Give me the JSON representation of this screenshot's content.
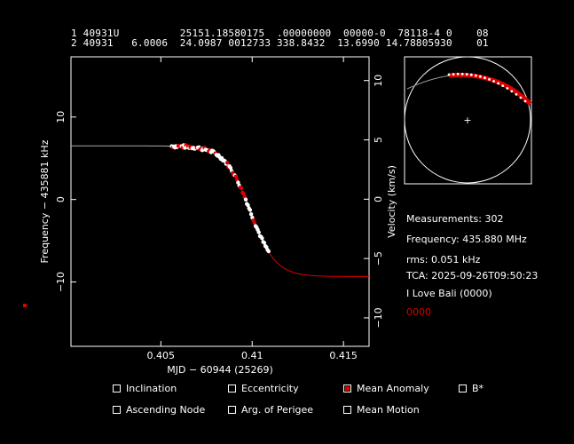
{
  "tle": {
    "line1": "1 40931U          25151.18580175  .00000000  00000-0  78118-4 0    08",
    "line2": "2 40931   6.0006  24.0987 0012733 338.8432  13.6990 14.78805930    01"
  },
  "info": {
    "measurements": "Measurements: 302",
    "frequency": "Frequency: 435.880 MHz",
    "rms": "rms: 0.051 kHz",
    "tca": "TCA: 2025-09-26T09:50:23",
    "site": "I Love Bali (0000)",
    "site_code": "0000"
  },
  "colors": {
    "accent": "#dd0000",
    "curve_fit": "#aaaaaa",
    "points": "#ffffff"
  },
  "checkboxes": [
    {
      "label": "Inclination",
      "checked": false
    },
    {
      "label": "Eccentricity",
      "checked": false
    },
    {
      "label": "Mean Anomaly",
      "checked": true
    },
    {
      "label": "B*",
      "checked": false
    },
    {
      "label": "Ascending Node",
      "checked": false
    },
    {
      "label": "Arg. of Perigee",
      "checked": false
    },
    {
      "label": "Mean Motion",
      "checked": false
    }
  ],
  "chart_data": {
    "type": "scatter",
    "xlabel": "MJD − 60944 (25269)",
    "ylabel": "Frequency − 435881 kHz",
    "y2label": "Velocity (km/s)",
    "xlim": [
      0.40008,
      0.4164
    ],
    "ylim": [
      -17.8,
      17.3
    ],
    "y2lim": [
      -12.4,
      12.0
    ],
    "xticks": [
      "0.405",
      "0.41",
      "0.415"
    ],
    "yticks": [
      "10",
      "0",
      "−10"
    ],
    "y2ticks": [
      "10",
      "5",
      "0",
      "−5",
      "−10"
    ],
    "curve": {
      "tca": 0.4099,
      "amplitude": 7.92,
      "offset": -1.42,
      "scale": 0.00138
    },
    "measurements": {
      "x_start": 0.4056,
      "x_end": 0.4109,
      "count": 302
    },
    "polar": {
      "type": "sky-track"
    }
  }
}
